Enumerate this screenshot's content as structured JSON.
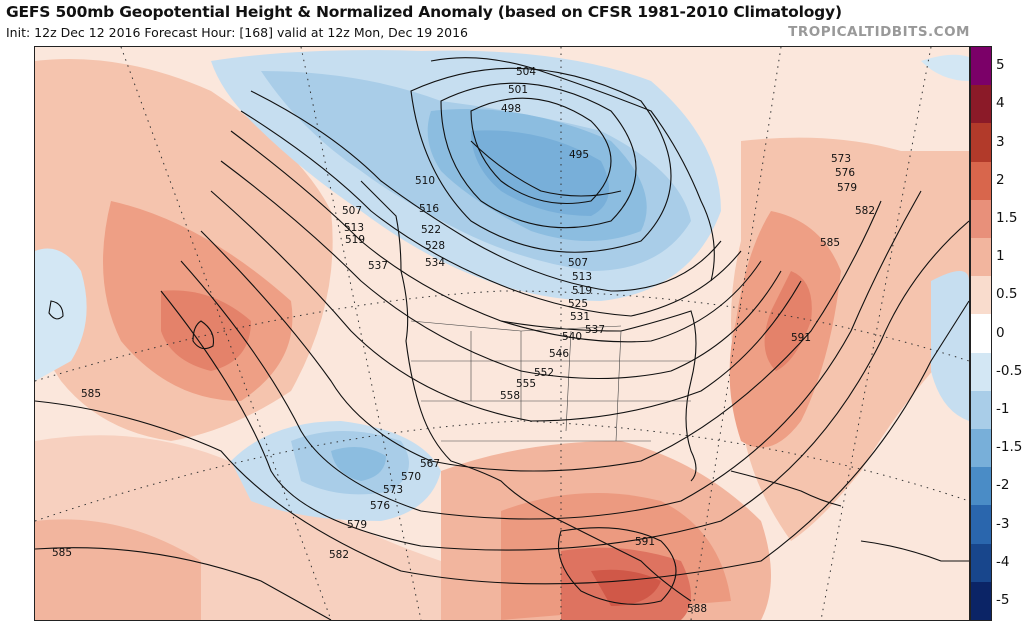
{
  "header": {
    "title": "GEFS 500mb Geopotential Height & Normalized Anomaly (based on CFSR 1981-2010 Climatology)",
    "subtitle": "Init: 12z Dec 12 2016   Forecast Hour: [168]   valid at 12z Mon, Dec 19 2016",
    "brand": "TROPICALTIDBITS.COM"
  },
  "colorbar": {
    "ticks": [
      "5",
      "4",
      "3",
      "2",
      "1.5",
      "1",
      "0.5",
      "0",
      "-0.5",
      "-1",
      "-1.5",
      "-2",
      "-3",
      "-4",
      "-5"
    ],
    "colors": [
      "#7b0068",
      "#8b1a28",
      "#b23a2a",
      "#d8664c",
      "#e8907a",
      "#f2b59e",
      "#f9dccd",
      "#ffffff",
      "#d3e7f4",
      "#a9cde8",
      "#78afd9",
      "#4a8cc6",
      "#2a66ad",
      "#18468c",
      "#0b2466"
    ]
  },
  "contour_labels": [
    "504",
    "501",
    "498",
    "495",
    "510",
    "507",
    "513",
    "519",
    "516",
    "522",
    "528",
    "534",
    "537",
    "507",
    "513",
    "519",
    "525",
    "531",
    "537",
    "540",
    "546",
    "552",
    "555",
    "558",
    "573",
    "576",
    "579",
    "582",
    "585",
    "591",
    "585",
    "567",
    "570",
    "573",
    "576",
    "579",
    "582",
    "585",
    "591",
    "588"
  ],
  "colors": {
    "ocean_anomaly_pos": "#e8907a",
    "ocean_anomaly_neg": "#a9cde8"
  }
}
